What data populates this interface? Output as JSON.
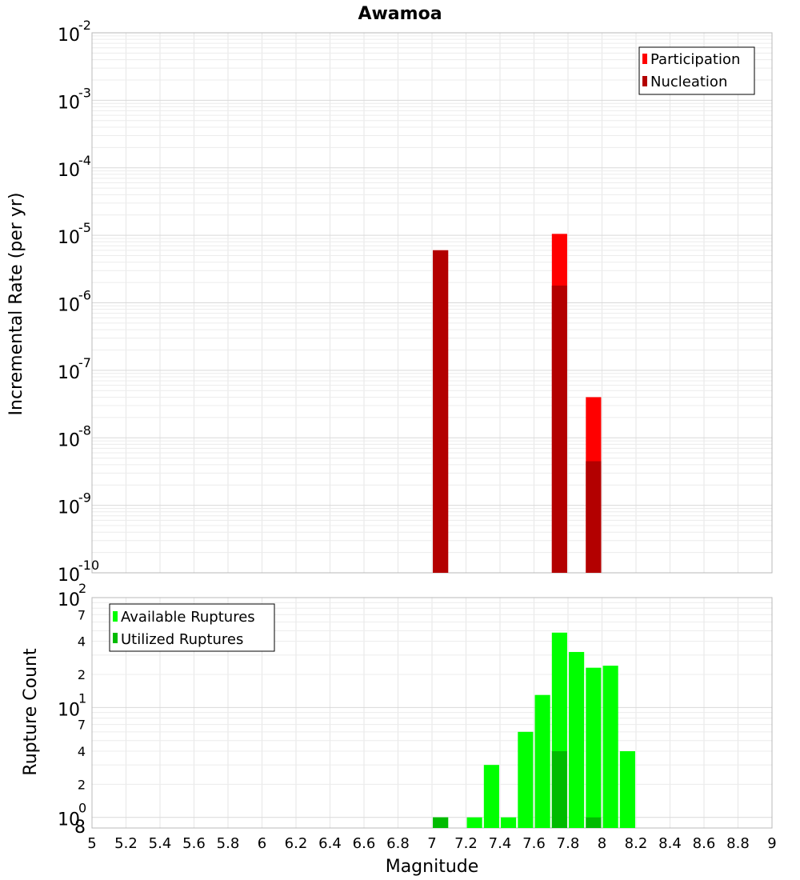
{
  "chart_data": [
    {
      "type": "bar",
      "title": "Awamoa",
      "ylabel": "Incremental Rate (per yr)",
      "yscale": "log",
      "ylim": [
        1e-10,
        0.01
      ],
      "xlim": [
        5,
        9
      ],
      "grid": true,
      "legend_position": "top-right",
      "bar_width": 0.09,
      "ytick_exponents": [
        -2,
        -3,
        -4,
        -5,
        -6,
        -7,
        -8,
        -9,
        -10
      ],
      "series": [
        {
          "name": "Participation",
          "color": "#ff0000",
          "x": [
            7.05,
            7.75,
            7.95
          ],
          "values": [
            6e-06,
            1.05e-05,
            4e-08
          ]
        },
        {
          "name": "Nucleation",
          "color": "#b30000",
          "x": [
            7.05,
            7.75,
            7.95
          ],
          "values": [
            6e-06,
            1.8e-06,
            4.5e-09
          ]
        }
      ]
    },
    {
      "type": "bar",
      "ylabel": "Rupture Count",
      "xlabel": "Magnitude",
      "yscale": "log",
      "ylim": [
        0.8,
        100
      ],
      "xlim": [
        5,
        9
      ],
      "grid": true,
      "legend_position": "top-left",
      "bar_width": 0.09,
      "xticks": [
        "5",
        "5.2",
        "5.4",
        "5.6",
        "5.8",
        "6",
        "6.2",
        "6.4",
        "6.6",
        "6.8",
        "7",
        "7.2",
        "7.4",
        "7.6",
        "7.8",
        "8",
        "8.2",
        "8.4",
        "8.6",
        "8.8",
        "9"
      ],
      "y_minor_ticks": [
        {
          "label": "8",
          "value": 0.8
        },
        {
          "label": "2",
          "value": 2
        },
        {
          "label": "4",
          "value": 4
        },
        {
          "label": "7",
          "value": 7
        },
        {
          "label": "2",
          "value": 20
        },
        {
          "label": "4",
          "value": 40
        },
        {
          "label": "7",
          "value": 70
        }
      ],
      "y_major_ticks": [
        {
          "base": "10",
          "exp": "0",
          "value": 1
        },
        {
          "base": "10",
          "exp": "1",
          "value": 10
        },
        {
          "base": "10",
          "exp": "2",
          "value": 100
        }
      ],
      "series": [
        {
          "name": "Available Ruptures",
          "color": "#00ff00",
          "x": [
            7.05,
            7.25,
            7.35,
            7.45,
            7.55,
            7.65,
            7.75,
            7.85,
            7.95,
            8.05,
            8.15
          ],
          "values": [
            1,
            1,
            3,
            1,
            6,
            13,
            48,
            32,
            23,
            24,
            4
          ]
        },
        {
          "name": "Utilized Ruptures",
          "color": "#00bb00",
          "x": [
            7.05,
            7.75,
            7.95
          ],
          "values": [
            1,
            4,
            1
          ]
        }
      ]
    }
  ]
}
